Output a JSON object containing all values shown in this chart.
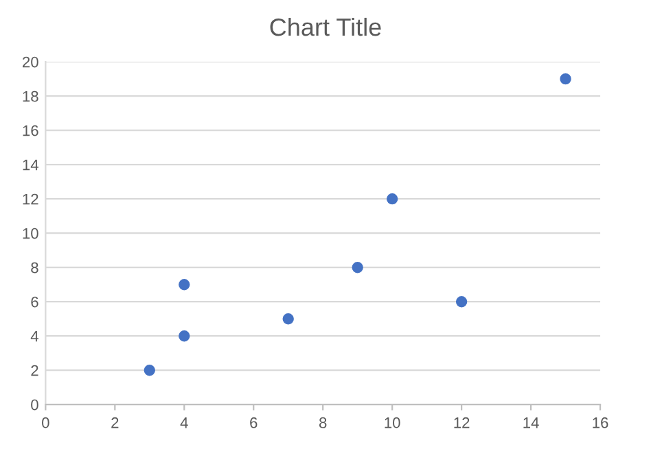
{
  "chart_data": {
    "type": "scatter",
    "title": "Chart Title",
    "x": [
      3,
      4,
      4,
      7,
      9,
      10,
      12,
      15
    ],
    "values": [
      2,
      4,
      7,
      5,
      8,
      12,
      6,
      19
    ],
    "color": "#4472c4",
    "marker": "circle",
    "xlim": [
      0,
      16
    ],
    "xticks": [
      0,
      2,
      4,
      6,
      8,
      10,
      12,
      14,
      16
    ],
    "ylim": [
      0,
      20
    ],
    "yticks": [
      0,
      2,
      4,
      6,
      8,
      10,
      12,
      14,
      16,
      18,
      20
    ],
    "grid": "y"
  }
}
